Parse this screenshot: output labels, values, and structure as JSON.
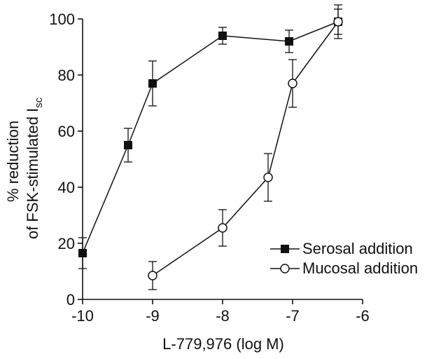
{
  "chart_data": {
    "type": "line",
    "xlabel": "L-779,976 (log M)",
    "ylabel_line1": "% reduction",
    "ylabel_line2": "of FSK-stimulated I",
    "ylabel_subscript": "sc",
    "xlim": [
      -10,
      -6
    ],
    "ylim": [
      0,
      100
    ],
    "xticks": [
      -10,
      -9,
      -8,
      -7,
      -6
    ],
    "yticks": [
      0,
      20,
      40,
      60,
      80,
      100
    ],
    "xtick_labels": [
      "-10",
      "-9",
      "-8",
      "-7",
      "-6"
    ],
    "ytick_labels": [
      "0",
      "20",
      "40",
      "60",
      "80",
      "100"
    ],
    "legend_position": "lower-right",
    "series": [
      {
        "name": "Serosal addition",
        "marker": "filled-square",
        "x": [
          -10,
          -9.35,
          -9,
          -8,
          -7.05,
          -6.35
        ],
        "y": [
          16.5,
          55,
          77,
          94,
          92,
          99
        ],
        "err": [
          5.5,
          6,
          8,
          3,
          4,
          6
        ]
      },
      {
        "name": "Mucosal addition",
        "marker": "open-circle",
        "x": [
          -9,
          -8,
          -7.35,
          -7,
          -6.35
        ],
        "y": [
          8.5,
          25.5,
          43.5,
          77,
          99
        ],
        "err": [
          5,
          6.5,
          8.5,
          8.5,
          4.5
        ]
      }
    ],
    "grid": false
  }
}
